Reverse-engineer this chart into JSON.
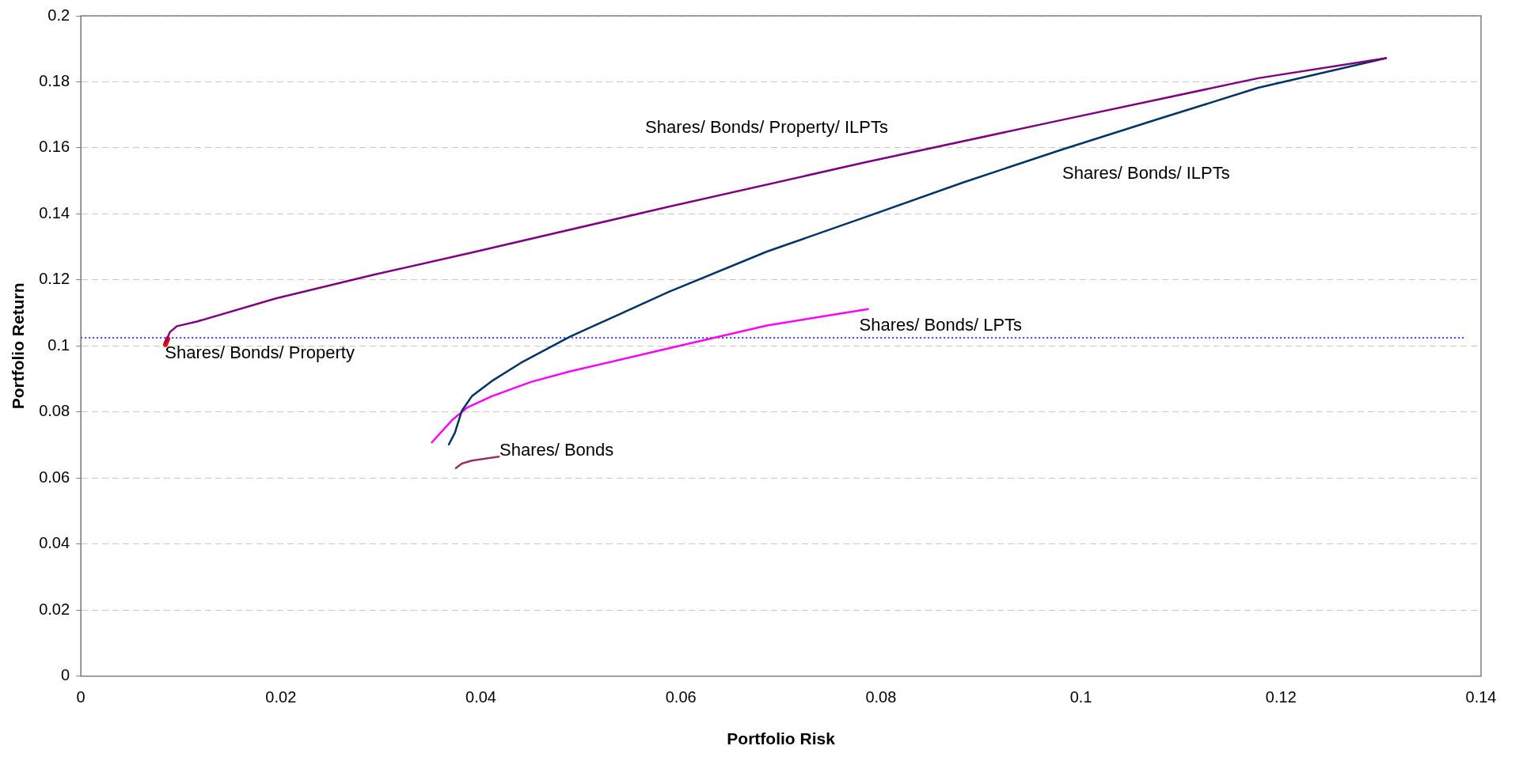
{
  "chart_data": {
    "type": "line",
    "xlabel": "Portfolio Risk",
    "ylabel": "Portfolio Return",
    "xlim": [
      0,
      0.14
    ],
    "xticks": [
      0,
      0.02,
      0.04,
      0.06,
      0.08,
      0.1,
      0.12,
      0.14
    ],
    "ylim": [
      0,
      0.2
    ],
    "yticks": [
      0,
      0.02,
      0.04,
      0.06,
      0.08,
      0.1,
      0.12,
      0.14,
      0.16,
      0.18,
      0.2
    ],
    "grid": "y",
    "legend": false,
    "marker": "none",
    "line_style": "solid",
    "ref_lines": [
      {
        "axis": "y",
        "value": 0.1025,
        "color": "#0000ff",
        "line_style": "dotted"
      }
    ],
    "series": [
      {
        "name": "Shares/ Bonds",
        "color": "#993366",
        "x": [
          0.0375,
          0.0381,
          0.0391,
          0.0418
        ],
        "values": [
          0.063,
          0.0644,
          0.0653,
          0.0665
        ]
      },
      {
        "name": "Shares/ Bonds/ Property",
        "color": "#ff0000",
        "x": [
          0.00845,
          0.0087
        ],
        "values": [
          0.1004,
          0.1022
        ]
      },
      {
        "name": "Shares/ Bonds/ LPTs",
        "color": "#ff00ff",
        "x": [
          0.0351,
          0.0371,
          0.0386,
          0.0411,
          0.045,
          0.0489,
          0.0588,
          0.0686,
          0.0787
        ],
        "values": [
          0.0708,
          0.0775,
          0.0813,
          0.0848,
          0.0891,
          0.0923,
          0.0993,
          0.1062,
          0.1112
        ]
      },
      {
        "name": "Shares/ Bonds/ ILPTs",
        "color": "#003366",
        "x": [
          0.0368,
          0.0374,
          0.0381,
          0.0391,
          0.0411,
          0.044,
          0.0489,
          0.0588,
          0.0686,
          0.0784,
          0.0882,
          0.098,
          0.1079,
          0.1177,
          0.1305
        ],
        "values": [
          0.0702,
          0.0737,
          0.0804,
          0.0848,
          0.0894,
          0.0949,
          0.1028,
          0.1164,
          0.1286,
          0.139,
          0.1495,
          0.1594,
          0.1689,
          0.1782,
          0.1872
        ]
      },
      {
        "name": "Shares/ Bonds/ Property/ ILPTs",
        "color": "#800080",
        "x": [
          0.00845,
          0.0089,
          0.0096,
          0.0116,
          0.0195,
          0.0293,
          0.0391,
          0.0588,
          0.0784,
          0.098,
          0.1177,
          0.1305
        ],
        "values": [
          0.101,
          0.1042,
          0.106,
          0.1074,
          0.1144,
          0.1216,
          0.1283,
          0.1422,
          0.1556,
          0.1684,
          0.1811,
          0.1872
        ]
      }
    ]
  }
}
